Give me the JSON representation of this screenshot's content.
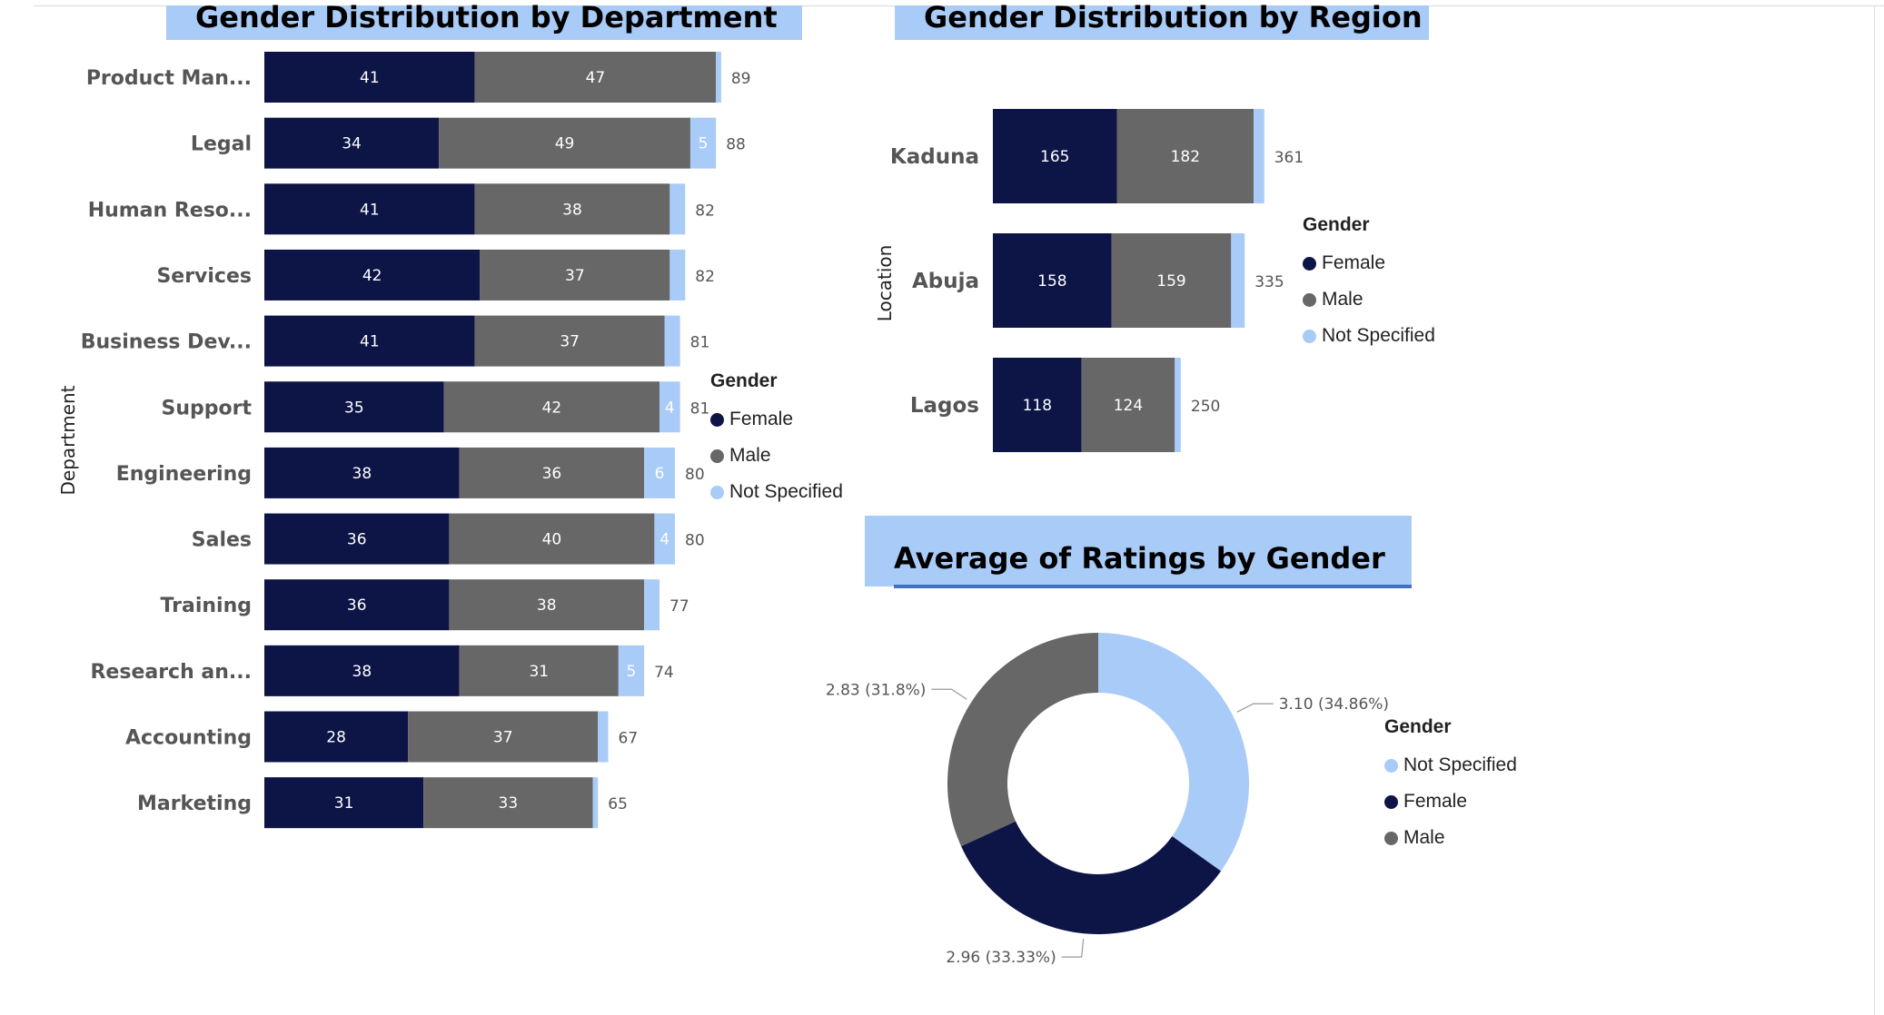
{
  "colors": {
    "female": "#0d1446",
    "male": "#676767",
    "not_specified": "#a9cbf7",
    "title_bg": "#a9cbf7"
  },
  "panels": {
    "dept_title": "Gender Distribution by Department",
    "region_title": "Gender Distribution by Region",
    "ratings_title": "Average of Ratings by Gender"
  },
  "legends": {
    "dept": {
      "title": "Gender",
      "items": [
        "Female",
        "Male",
        "Not Specified"
      ]
    },
    "region": {
      "title": "Gender",
      "items": [
        "Female",
        "Male",
        "Not Specified"
      ]
    },
    "ratings": {
      "title": "Gender",
      "items": [
        "Not Specified",
        "Female",
        "Male"
      ]
    }
  },
  "chart_data": [
    {
      "type": "bar",
      "orientation": "horizontal",
      "stacked": true,
      "title": "Gender Distribution by Department",
      "ylabel": "Department",
      "categories": [
        "Product Man...",
        "Legal",
        "Human Reso...",
        "Services",
        "Business Dev...",
        "Support",
        "Engineering",
        "Sales",
        "Training",
        "Research an...",
        "Accounting",
        "Marketing"
      ],
      "series": [
        {
          "name": "Female",
          "values": [
            41,
            34,
            41,
            42,
            41,
            35,
            38,
            36,
            36,
            38,
            28,
            31
          ]
        },
        {
          "name": "Male",
          "values": [
            47,
            49,
            38,
            37,
            37,
            42,
            36,
            40,
            38,
            31,
            37,
            33
          ]
        },
        {
          "name": "Not Specified",
          "values": [
            1,
            5,
            3,
            3,
            3,
            4,
            6,
            4,
            3,
            5,
            2,
            1
          ]
        }
      ],
      "totals": [
        89,
        88,
        82,
        82,
        81,
        81,
        80,
        80,
        77,
        74,
        67,
        65
      ],
      "shown_labels": [
        [
          "41",
          "47",
          ""
        ],
        [
          "34",
          "49",
          "5"
        ],
        [
          "41",
          "38",
          ""
        ],
        [
          "42",
          "37",
          ""
        ],
        [
          "41",
          "37",
          ""
        ],
        [
          "35",
          "42",
          "4"
        ],
        [
          "38",
          "36",
          "6"
        ],
        [
          "36",
          "40",
          "4"
        ],
        [
          "36",
          "38",
          ""
        ],
        [
          "38",
          "31",
          "5"
        ],
        [
          "28",
          "37",
          ""
        ],
        [
          "31",
          "33",
          ""
        ]
      ],
      "legend": "right"
    },
    {
      "type": "bar",
      "orientation": "horizontal",
      "stacked": true,
      "title": "Gender Distribution by Region",
      "ylabel": "Location",
      "categories": [
        "Kaduna",
        "Abuja",
        "Lagos"
      ],
      "series": [
        {
          "name": "Female",
          "values": [
            165,
            158,
            118
          ]
        },
        {
          "name": "Male",
          "values": [
            182,
            159,
            124
          ]
        },
        {
          "name": "Not Specified",
          "values": [
            14,
            18,
            8
          ]
        }
      ],
      "totals": [
        361,
        335,
        250
      ],
      "legend": "right"
    },
    {
      "type": "pie",
      "donut": true,
      "title": "Average of Ratings by Gender",
      "categories": [
        "Not Specified",
        "Female",
        "Male"
      ],
      "values": [
        3.1,
        2.96,
        2.83
      ],
      "labels": [
        "3.10 (34.86%)",
        "2.96 (33.33%)",
        "2.83 (31.8%)"
      ],
      "legend": "right"
    }
  ]
}
